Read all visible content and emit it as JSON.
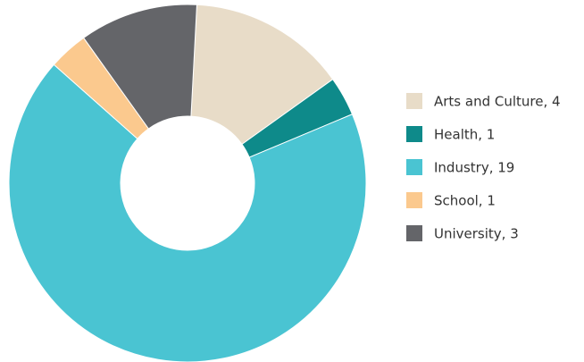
{
  "chart_data": {
    "type": "donut",
    "categories": [
      "Arts and Culture, 4",
      "Health, 1",
      "Industry, 19",
      "School, 1",
      "University, 3"
    ],
    "values": [
      4,
      1,
      19,
      1,
      3
    ],
    "colors": [
      "#e8dcc8",
      "#0e8a8a",
      "#4ac4d2",
      "#fbc98e",
      "#646569"
    ],
    "legend": "right"
  }
}
